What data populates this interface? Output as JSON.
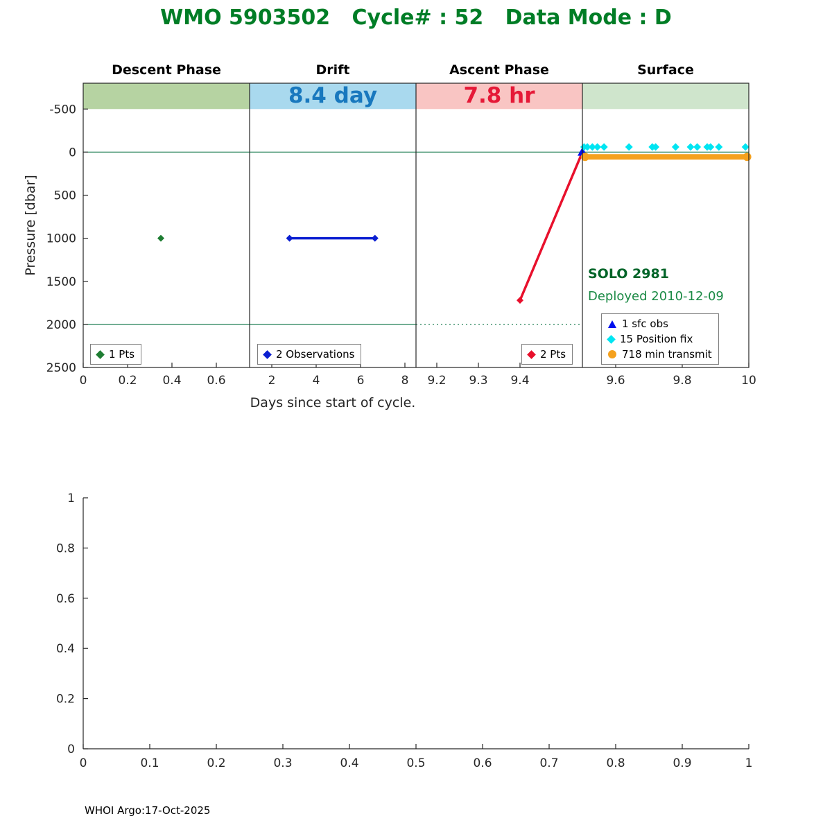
{
  "title": "WMO 5903502   Cycle# : 52   Data Mode : D",
  "footer": "WHOI Argo:17-Oct-2025",
  "annotations": {
    "float_name": "SOLO 2981",
    "deployed": "Deployed 2010-12-09"
  },
  "colors": {
    "title_green": "#007d26",
    "solo_green": "#006428",
    "deployed_green": "#1b8a45",
    "axis": "#262626",
    "reference_green": "#1d7d52"
  },
  "chart_data": [
    {
      "type": "line",
      "title": "WMO 5903502   Cycle# : 52   Data Mode : D",
      "xlabel": "Days since start of cycle.",
      "ylabel": "Pressure [dbar]",
      "y_axis": {
        "reversed": true,
        "lim": [
          -800,
          2500
        ],
        "ticks": [
          -500,
          0,
          500,
          1000,
          1500,
          2000,
          2500
        ]
      },
      "band_pressure_range": [
        -800,
        -500
      ],
      "segments": [
        {
          "label": "Descent Phase",
          "xmin": 0,
          "xmax": 0.75,
          "ticks": [
            0,
            0.2,
            0.4,
            0.6
          ],
          "band_color": "#b6d3a2",
          "band_label": ""
        },
        {
          "label": "Drift",
          "xmin": 1,
          "xmax": 8.5,
          "ticks": [
            2,
            4,
            6,
            8
          ],
          "band_color": "#a9d9ee",
          "band_label": "8.4 day",
          "band_label_color": "#1878be"
        },
        {
          "label": "Ascent Phase",
          "xmin": 9.15,
          "xmax": 9.55,
          "ticks": [
            9.2,
            9.3,
            9.4
          ],
          "band_color": "#f9c5c3",
          "band_label": "7.8 hr",
          "band_label_color": "#e51937"
        },
        {
          "label": "Surface",
          "xmin": 9.5,
          "xmax": 10,
          "ticks": [
            9.6,
            9.8,
            10
          ],
          "band_color": "#cfe5cc",
          "band_label": ""
        }
      ],
      "reference_lines": [
        {
          "pressure": 0,
          "from_segment": 0,
          "to_segment": 3,
          "style": "solid",
          "color": "#1d7d52"
        },
        {
          "pressure": 2000,
          "from_segment": 0,
          "to_segment": 1,
          "style": "solid",
          "color": "#1d7d52"
        },
        {
          "pressure": 2000,
          "from_segment": 2,
          "to_segment": 2,
          "style": "dotted",
          "color": "#1d7d52"
        }
      ],
      "series": [
        {
          "name": "descent-obs",
          "segment": 0,
          "legend": "1 Pts",
          "marker": "diamond",
          "marker_size": 5,
          "color": "#1e7d32",
          "line": false,
          "points": [
            [
              0.35,
              1000
            ]
          ]
        },
        {
          "name": "drift-obs",
          "segment": 1,
          "legend": "2 Observations",
          "marker": "diamond",
          "marker_size": 5,
          "color": "#0b1fd1",
          "line": true,
          "line_width": 3.5,
          "points": [
            [
              2.8,
              1000
            ],
            [
              6.65,
              1000
            ]
          ]
        },
        {
          "name": "ascent-obs",
          "segment": 2,
          "legend": "2 Pts",
          "marker": "diamond",
          "marker_size": 5,
          "color": "#e8102c",
          "line": true,
          "line_width": 3.5,
          "marker_on": [
            0
          ],
          "points": [
            [
              9.4,
              1720
            ],
            [
              9.55,
              0
            ]
          ]
        },
        {
          "name": "surface-obs",
          "segment": 2,
          "legend": "1 sfc obs",
          "marker": "triangle",
          "marker_size": 7,
          "color": "#0010ee",
          "line": false,
          "points": [
            [
              9.55,
              0
            ]
          ]
        },
        {
          "name": "position-fixes",
          "segment": 3,
          "legend": "15 Position fix",
          "marker": "diamond",
          "marker_size": 5.5,
          "color": "#00e5f2",
          "line": false,
          "points": [
            [
              9.505,
              -60
            ],
            [
              9.515,
              -60
            ],
            [
              9.53,
              -60
            ],
            [
              9.545,
              -60
            ],
            [
              9.565,
              -60
            ],
            [
              9.64,
              -60
            ],
            [
              9.71,
              -60
            ],
            [
              9.72,
              -60
            ],
            [
              9.78,
              -60
            ],
            [
              9.825,
              -60
            ],
            [
              9.845,
              -60
            ],
            [
              9.875,
              -60
            ],
            [
              9.885,
              -60
            ],
            [
              9.91,
              -60
            ],
            [
              9.99,
              -60
            ]
          ]
        },
        {
          "name": "transmit-span",
          "segment": 3,
          "legend": "718 min transmit",
          "marker": "circle",
          "marker_size": 6,
          "color": "#f5a11d",
          "line": true,
          "line_width": 8,
          "marker_on": [
            0,
            1
          ],
          "points": [
            [
              9.508,
              55
            ],
            [
              9.995,
              55
            ]
          ]
        }
      ]
    },
    {
      "type": "line",
      "title": "",
      "xlabel": "",
      "ylabel": "",
      "x_axis": {
        "lim": [
          0,
          1
        ],
        "ticks": [
          0,
          0.1,
          0.2,
          0.3,
          0.4,
          0.5,
          0.6,
          0.7,
          0.8,
          0.9,
          1
        ]
      },
      "y_axis": {
        "lim": [
          0,
          1
        ],
        "ticks": [
          0,
          0.2,
          0.4,
          0.6,
          0.8,
          1
        ]
      },
      "series": []
    }
  ]
}
